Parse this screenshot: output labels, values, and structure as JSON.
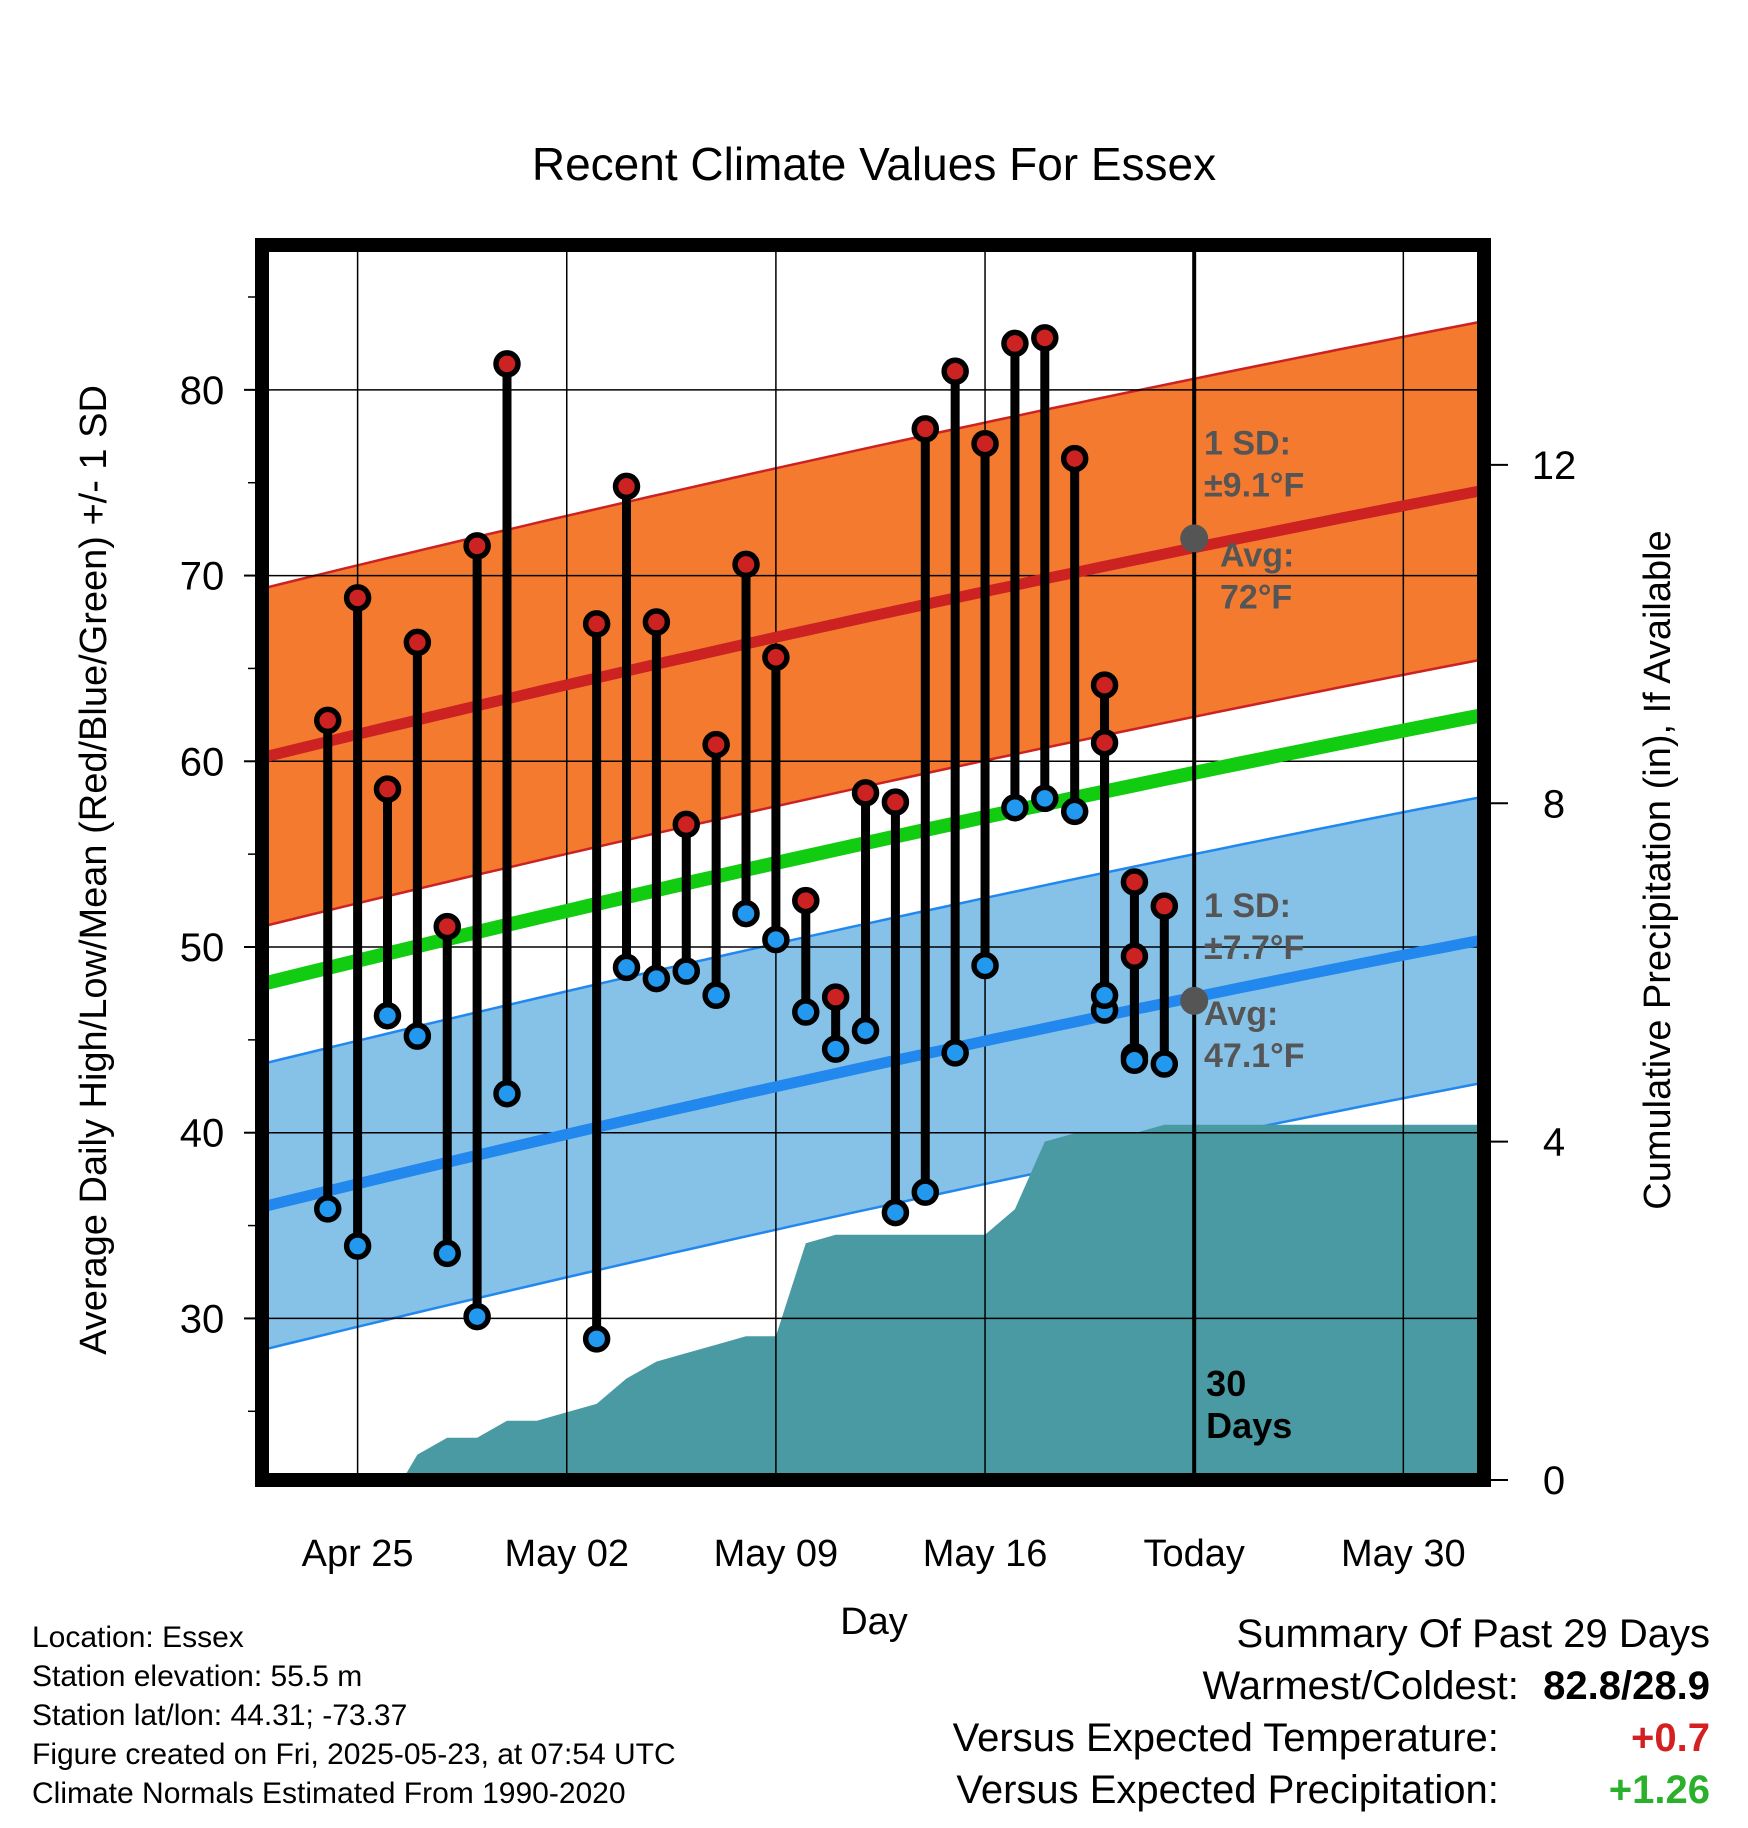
{
  "chart_data": {
    "type": "line",
    "title": "Recent Climate Values For Essex",
    "xlabel": "Day",
    "ylabel": "Average Daily High/Low/Mean (Red/Blue/Green) +/- 1 SD",
    "y2label": "Cumulative Precipitation (in), If Available",
    "x_tick_labels": [
      "Apr 25",
      "May 02",
      "May 09",
      "May 16",
      "Today",
      "May 30"
    ],
    "x_tick_days": [
      2,
      9,
      16,
      23,
      30,
      37
    ],
    "y_ticks": [
      30,
      40,
      50,
      60,
      70,
      80
    ],
    "y2_ticks": [
      0,
      4,
      8,
      12
    ],
    "xlim": [
      -1.2,
      39.7
    ],
    "ylim": [
      21.3,
      87.8
    ],
    "y2lim": [
      0,
      14.6
    ],
    "today_day": 30,
    "today_label": "30\nDays",
    "normals": {
      "high_avg_start": 60.2,
      "high_avg_end": 74.6,
      "high_sd_half_width": 9.1,
      "low_avg_start": 36.0,
      "low_avg_end": 50.4,
      "low_sd_half_width": 7.7,
      "mean_start": 48.0,
      "mean_end": 62.5
    },
    "high_annotation": {
      "sd_title": "1 SD:",
      "sd_value": "±9.1°F",
      "avg_title": "Avg:",
      "avg_value": "72°F",
      "avg_at_today": 72
    },
    "low_annotation": {
      "sd_title": "1 SD:",
      "sd_value": "±7.7°F",
      "avg_title": "Avg:",
      "avg_value": "47.1°F",
      "avg_at_today": 47.1
    },
    "series": [
      {
        "name": "High",
        "color": "#cc2222",
        "x": [
          1,
          2,
          3,
          4,
          5,
          6,
          7,
          10,
          11,
          12,
          13,
          14,
          15,
          16,
          17,
          18,
          19,
          20,
          21,
          22,
          23,
          24,
          25,
          26,
          27,
          28,
          29
        ],
        "values": [
          62.2,
          68.8,
          58.5,
          66.4,
          51.1,
          71.6,
          81.4,
          67.4,
          74.8,
          67.5,
          56.6,
          60.9,
          70.6,
          65.6,
          52.5,
          47.3,
          58.3,
          57.8,
          77.9,
          81.0,
          77.1,
          82.5,
          82.8,
          76.3,
          64.1,
          49.5,
          52.2
        ]
      },
      {
        "name": "Low",
        "color": "#2299ee",
        "x": [
          1,
          2,
          3,
          4,
          5,
          6,
          7,
          10,
          11,
          12,
          13,
          14,
          15,
          16,
          17,
          18,
          19,
          20,
          21,
          22,
          23,
          24,
          25,
          26,
          27,
          28,
          29
        ],
        "values": [
          35.9,
          33.9,
          46.3,
          45.2,
          33.5,
          30.1,
          42.1,
          28.9,
          48.9,
          48.3,
          48.7,
          47.4,
          51.8,
          50.4,
          46.5,
          44.5,
          45.5,
          35.7,
          36.8,
          44.3,
          49.0,
          57.5,
          58.0,
          57.3,
          46.6,
          44.1,
          43.7
        ]
      },
      {
        "name": "High (late)",
        "color": "#cc2222",
        "x": [
          27,
          28
        ],
        "values": [
          61.0,
          53.5
        ]
      },
      {
        "name": "Low (late)",
        "color": "#2299ee",
        "x": [
          27,
          28
        ],
        "values": [
          47.4,
          43.9
        ]
      }
    ],
    "precip_x": [
      -1,
      3.5,
      4,
      5,
      6,
      7,
      8,
      9,
      10,
      11,
      12,
      13,
      14,
      15,
      16,
      17,
      18,
      19,
      20,
      21,
      22,
      23,
      24,
      25,
      26,
      27,
      28,
      29,
      30,
      31,
      39.7
    ],
    "precip_values": [
      0,
      0,
      0.3,
      0.5,
      0.5,
      0.7,
      0.7,
      0.8,
      0.9,
      1.2,
      1.4,
      1.5,
      1.6,
      1.7,
      1.7,
      2.8,
      2.9,
      2.9,
      2.9,
      2.9,
      2.9,
      2.9,
      3.2,
      4.0,
      4.1,
      4.1,
      4.1,
      4.2,
      4.2,
      4.2,
      4.2
    ]
  },
  "info": {
    "location": "Location: Essex",
    "elevation": "Station elevation: 55.5 m",
    "latlon": "Station lat/lon: 44.31; -73.37",
    "created": "Figure created on Fri, 2025-05-23, at 07:54 UTC",
    "normals_source": "Climate Normals Estimated From 1990-2020"
  },
  "summary": {
    "title": "Summary Of Past 29 Days",
    "warm_cold_label": "Warmest/Coldest:",
    "warm_cold_value": "82.8/28.9",
    "temp_label": "Versus Expected Temperature:",
    "temp_value": "+0.7",
    "precip_label": "Versus Expected Precipitation:",
    "precip_value": "+1.26"
  },
  "colors": {
    "high_band": "#f47a30",
    "high_line": "#cc2222",
    "low_band": "#86c2e8",
    "low_line": "#2288ee",
    "mean_line": "#11cc11",
    "precip_fill": "#4a9aa4",
    "annotation_text": "#555555"
  }
}
